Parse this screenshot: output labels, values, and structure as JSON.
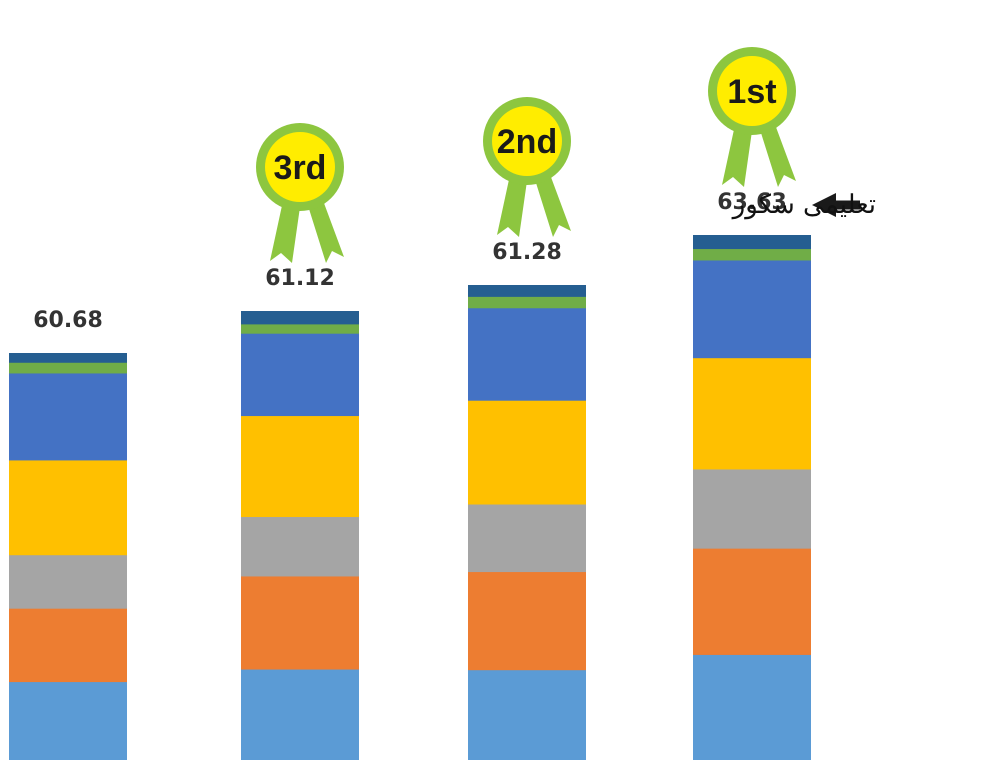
{
  "chart_data": {
    "type": "bar",
    "stacked": true,
    "xlabel": "",
    "ylabel": "",
    "bars": [
      {
        "total": 60.68,
        "total_label": "60.68",
        "rank_label": "",
        "segments": [
          11.0,
          10.3,
          7.5,
          13.3,
          12.2,
          1.5,
          1.3
        ]
      },
      {
        "total": 61.12,
        "total_label": "61.12",
        "rank_label": "3rd",
        "segments": [
          12.7,
          13.0,
          8.3,
          14.1,
          11.5,
          1.3,
          1.8
        ]
      },
      {
        "total": 61.28,
        "total_label": "61.28",
        "rank_label": "2nd",
        "segments": [
          12.7,
          13.8,
          9.5,
          14.6,
          13.0,
          1.6,
          1.6
        ]
      },
      {
        "total": 63.63,
        "total_label": "63.63",
        "rank_label": "1st",
        "segments": [
          14.8,
          14.9,
          11.1,
          15.6,
          13.7,
          1.6,
          1.9
        ]
      }
    ],
    "segment_colors": [
      "#5b9bd5",
      "#ed7d31",
      "#a5a5a5",
      "#ffc000",
      "#4472c4",
      "#70ad47",
      "#255e91"
    ],
    "annotation": {
      "text": "تعلیمی سکور",
      "points_to": "63.63"
    },
    "badge_colors": {
      "ring": "#8dc63f",
      "fill": "#ffed00",
      "ribbon": "#8dc63f"
    }
  }
}
